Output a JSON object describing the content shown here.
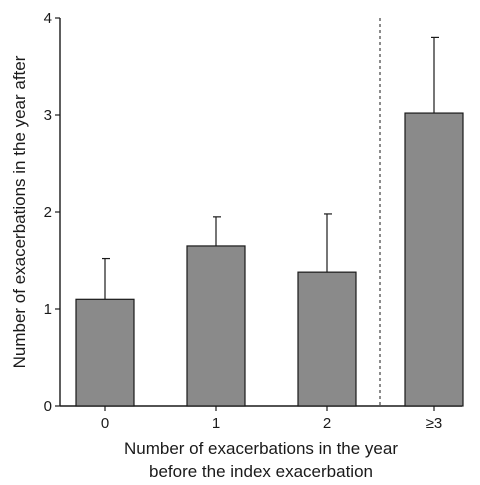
{
  "chart_data": {
    "type": "bar",
    "title": "",
    "categories": [
      "0",
      "1",
      "2",
      "≥3"
    ],
    "values": [
      1.1,
      1.65,
      1.38,
      3.02
    ],
    "error_upper": [
      1.52,
      1.95,
      1.98,
      3.8
    ],
    "ylabel": "Number of exacerbations in the year after",
    "xlabel_line1": "Number of exacerbations in the year",
    "xlabel_line2": "before the index exacerbation",
    "ylim": [
      0,
      4
    ],
    "yticks": [
      "0",
      "1",
      "2",
      "3",
      "4"
    ],
    "grid": false,
    "legend": "none",
    "bar_color": "#8a8a8a",
    "separator_between": [
      "2",
      "≥3"
    ]
  }
}
